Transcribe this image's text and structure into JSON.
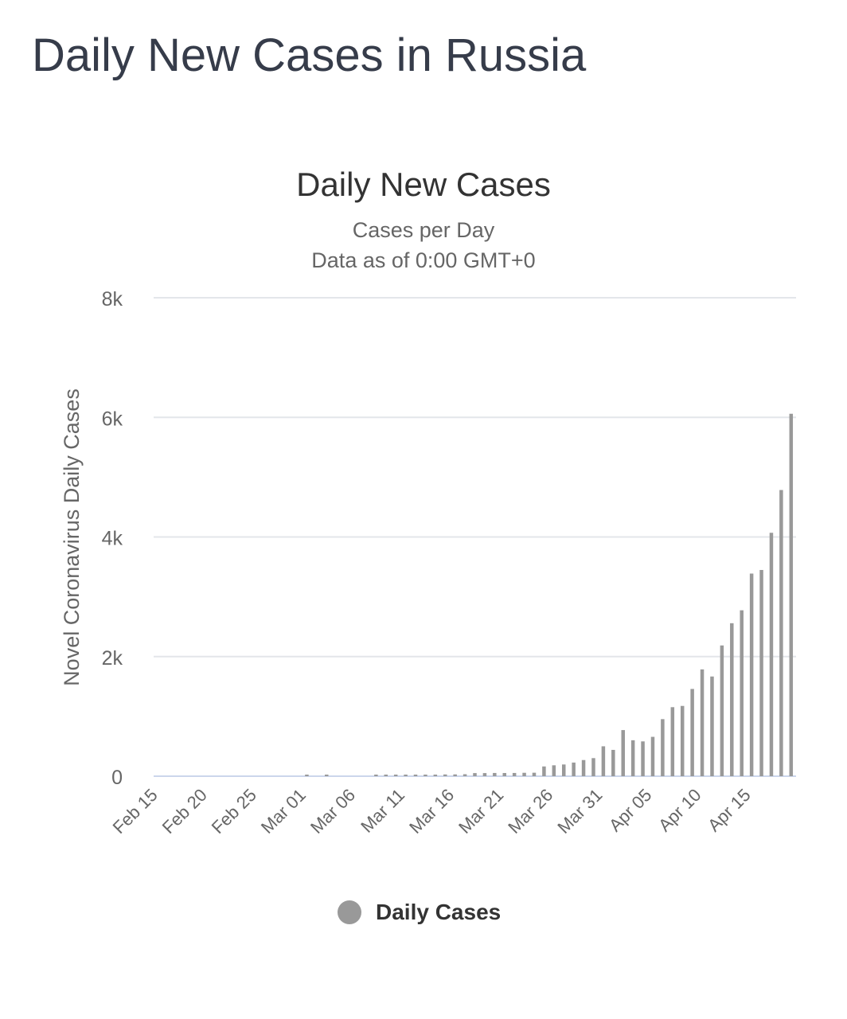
{
  "page": {
    "title": "Daily New Cases in Russia"
  },
  "colors": {
    "bar": "#999999",
    "grid": "#e3e6ea",
    "baseline": "#ccd6eb",
    "text": "#666666"
  },
  "chart_data": {
    "type": "bar",
    "title": "Daily New Cases",
    "subtitle": "Cases per Day",
    "subtitle2": "Data as of 0:00 GMT+0",
    "ylabel": "Novel Coronavirus Daily Cases",
    "xlabel": "",
    "ylim": [
      0,
      8000
    ],
    "yticks": [
      0,
      2000,
      4000,
      6000,
      8000
    ],
    "ytick_labels": [
      "0",
      "2k",
      "4k",
      "6k",
      "8k"
    ],
    "grid": true,
    "legend_position": "bottom-center",
    "xtick_labels": [
      "Feb 15",
      "Feb 20",
      "Feb 25",
      "Mar 01",
      "Mar 06",
      "Mar 11",
      "Mar 16",
      "Mar 21",
      "Mar 26",
      "Mar 31",
      "Apr 05",
      "Apr 10",
      "Apr 15"
    ],
    "categories": [
      "Feb 15",
      "Feb 16",
      "Feb 17",
      "Feb 18",
      "Feb 19",
      "Feb 20",
      "Feb 21",
      "Feb 22",
      "Feb 23",
      "Feb 24",
      "Feb 25",
      "Feb 26",
      "Feb 27",
      "Feb 28",
      "Feb 29",
      "Mar 01",
      "Mar 02",
      "Mar 03",
      "Mar 04",
      "Mar 05",
      "Mar 06",
      "Mar 07",
      "Mar 08",
      "Mar 09",
      "Mar 10",
      "Mar 11",
      "Mar 12",
      "Mar 13",
      "Mar 14",
      "Mar 15",
      "Mar 16",
      "Mar 17",
      "Mar 18",
      "Mar 19",
      "Mar 20",
      "Mar 21",
      "Mar 22",
      "Mar 23",
      "Mar 24",
      "Mar 25",
      "Mar 26",
      "Mar 27",
      "Mar 28",
      "Mar 29",
      "Mar 30",
      "Mar 31",
      "Apr 01",
      "Apr 02",
      "Apr 03",
      "Apr 04",
      "Apr 05",
      "Apr 06",
      "Apr 07",
      "Apr 08",
      "Apr 09",
      "Apr 10",
      "Apr 11",
      "Apr 12",
      "Apr 13",
      "Apr 14",
      "Apr 15",
      "Apr 16",
      "Apr 17",
      "Apr 18",
      "Apr 19"
    ],
    "series": [
      {
        "name": "Daily Cases",
        "values": [
          0,
          0,
          0,
          0,
          0,
          0,
          0,
          0,
          0,
          0,
          0,
          0,
          0,
          0,
          0,
          2,
          0,
          1,
          0,
          0,
          0,
          0,
          4,
          3,
          3,
          8,
          6,
          6,
          4,
          29,
          30,
          33,
          52,
          52,
          54,
          53,
          54,
          57,
          58,
          163,
          182,
          196,
          228,
          270,
          302,
          500,
          440,
          771,
          601,
          582,
          658,
          954,
          1154,
          1175,
          1459,
          1786,
          1667,
          2186,
          2558,
          2774,
          3388,
          3448,
          4070,
          4785,
          6060
        ]
      }
    ]
  },
  "legend": {
    "label": "Daily Cases"
  }
}
